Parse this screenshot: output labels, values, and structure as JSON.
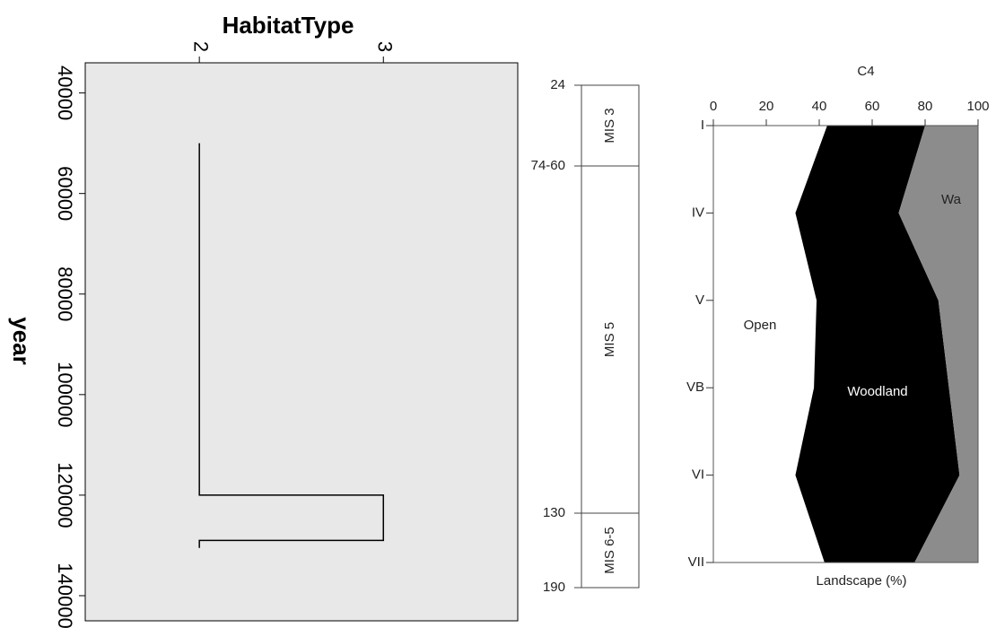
{
  "chart_data": [
    {
      "type": "line",
      "title": "HabitatType",
      "ylabel": "year",
      "xlim": [
        1.38,
        3.73
      ],
      "xticks": [
        2,
        3
      ],
      "ylim": [
        145000,
        34000
      ],
      "yticks": [
        40000,
        60000,
        80000,
        100000,
        120000,
        140000
      ],
      "background": "#e8e8e8",
      "series": [
        {
          "color": "#000000",
          "x": [
            2,
            2,
            3,
            3,
            2,
            2
          ],
          "values": [
            50000,
            120000,
            120000,
            129000,
            129000,
            130500
          ]
        }
      ]
    },
    {
      "type": "strat",
      "boundaries": [
        "24",
        "74-60",
        "130",
        "190"
      ],
      "units": [
        "MIS 3",
        "MIS 5",
        "MIS 6-5"
      ]
    },
    {
      "type": "stacked_area",
      "title": "C4",
      "xlabel": "Landscape (%)",
      "categories": [
        "I",
        "IV",
        "V",
        "VB",
        "VI",
        "VII"
      ],
      "xlim": [
        0,
        100
      ],
      "xticks": [
        0,
        20,
        40,
        60,
        80,
        100
      ],
      "series": [
        {
          "name": "Open",
          "color": "#ffffff",
          "values": [
            43,
            31,
            39,
            38,
            31,
            42
          ]
        },
        {
          "name": "Woodland",
          "color": "#000000",
          "values": [
            37,
            39,
            46,
            51,
            62,
            34
          ]
        },
        {
          "name": "Wa",
          "color": "#8c8c8c",
          "values": [
            20,
            30,
            15,
            11,
            7,
            24
          ]
        }
      ]
    }
  ]
}
